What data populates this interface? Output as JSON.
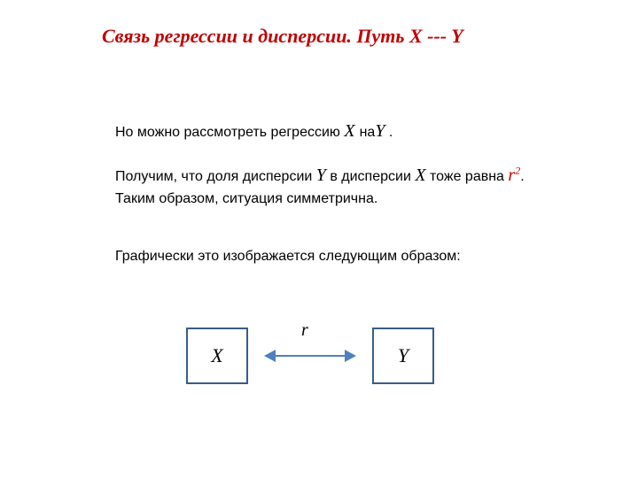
{
  "title": "Связь регрессии и дисперсии. Путь X --- Y",
  "line1": {
    "prefix": "Но можно рассмотреть регрессию ",
    "var1": "X ",
    "mid": "на",
    "var2": "Y",
    "suffix": " ."
  },
  "line2": {
    "prefix": "Получим, что доля дисперсии ",
    "var1": "Y",
    "mid": " в дисперсии ",
    "var2": "X",
    "mid2": " тоже равна ",
    "r": "r",
    "rexp": "2",
    "suffix": "."
  },
  "line3": "Таким образом, ситуация симметрична.",
  "line4": "Графически это изображается следующим образом:",
  "diagram": {
    "x_label": "X",
    "y_label": "Y",
    "r_label": "r",
    "box_border_color": "#385d8a",
    "arrow_color": "#4f81bd"
  },
  "colors": {
    "title_color": "#c00000",
    "text_color": "#000000",
    "r_color": "#c00000",
    "background": "#ffffff"
  },
  "typography": {
    "title_fontsize": 22,
    "body_fontsize": 16,
    "var_fontsize": 20,
    "box_label_fontsize": 22
  }
}
